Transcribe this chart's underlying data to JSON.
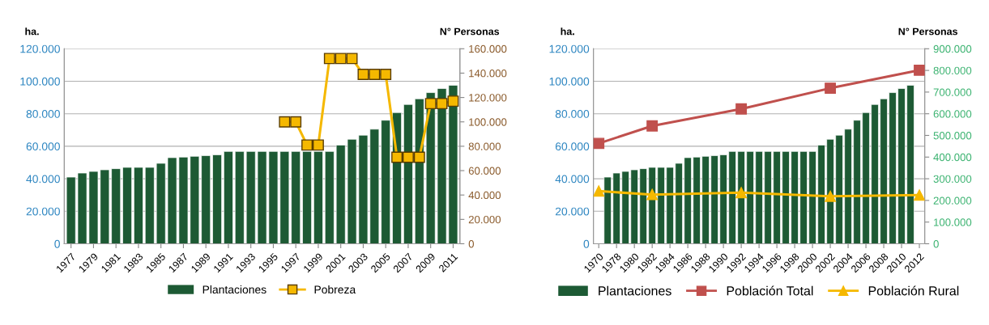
{
  "chart_data": [
    {
      "type": "bar",
      "ylabel": "ha.",
      "y2label": "N° Personas",
      "grid": "y",
      "legend": "bottom",
      "categories": [
        "1977",
        null,
        "1979",
        null,
        "1981",
        null,
        "1983",
        null,
        "1985",
        null,
        "1987",
        null,
        "1989",
        null,
        "1991",
        null,
        "1993",
        null,
        "1995",
        null,
        "1997",
        null,
        "1999",
        null,
        "2001",
        null,
        "2003",
        null,
        "2005",
        null,
        "2007",
        null,
        "2009",
        null,
        "2011"
      ],
      "ylim": [
        0,
        120000
      ],
      "yticks": [
        {
          "value": 0,
          "label": "0"
        },
        {
          "value": 20000,
          "label": "20.000"
        },
        {
          "value": 40000,
          "label": "40.000"
        },
        {
          "value": 60000,
          "label": "60.000"
        },
        {
          "value": 80000,
          "label": "80.000"
        },
        {
          "value": 100000,
          "label": "100.000"
        },
        {
          "value": 120000,
          "label": "120.000"
        }
      ],
      "y2lim": [
        0,
        160000
      ],
      "y2ticks": [
        {
          "value": 0,
          "label": "0"
        },
        {
          "value": 20000,
          "label": "20.000"
        },
        {
          "value": 40000,
          "label": "40.000"
        },
        {
          "value": 60000,
          "label": "60.000"
        },
        {
          "value": 80000,
          "label": "80.000"
        },
        {
          "value": 100000,
          "label": "100.000"
        },
        {
          "value": 120000,
          "label": "120.000"
        },
        {
          "value": 140000,
          "label": "140.000"
        },
        {
          "value": 160000,
          "label": "160.000"
        }
      ],
      "series": [
        {
          "name": "Plantaciones",
          "color": "#1d5a34",
          "values": [
            41000,
            43500,
            44500,
            45500,
            46200,
            47000,
            47000,
            47000,
            49500,
            53000,
            53300,
            53800,
            54200,
            54700,
            56800,
            56800,
            56800,
            56800,
            56800,
            56800,
            56800,
            56800,
            56800,
            56800,
            60700,
            64300,
            66800,
            70500,
            76000,
            80700,
            85700,
            89200,
            93000,
            95500,
            97500
          ]
        },
        {
          "name": "Pobreza",
          "type": "line",
          "axis": "y2",
          "marker": "square",
          "color": "#f5b800",
          "values": [
            null,
            null,
            null,
            null,
            null,
            null,
            null,
            null,
            null,
            null,
            null,
            null,
            null,
            null,
            null,
            null,
            null,
            null,
            null,
            100000,
            100000,
            81000,
            81000,
            152000,
            152000,
            152000,
            139000,
            139000,
            139000,
            71000,
            71000,
            71000,
            115000,
            115000,
            117000
          ]
        }
      ]
    },
    {
      "type": "bar",
      "ylabel": "ha.",
      "y2label": "N° Personas",
      "grid": "y",
      "legend": "bottom",
      "categories": [
        "1970",
        null,
        "1978",
        null,
        "1980",
        null,
        "1982",
        null,
        "1984",
        null,
        "1986",
        null,
        "1988",
        null,
        "1990",
        null,
        "1992",
        null,
        "1994",
        null,
        "1996",
        null,
        "1998",
        null,
        "2000",
        null,
        "2002",
        null,
        "2004",
        null,
        "2006",
        null,
        "2008",
        null,
        "2010",
        null,
        "2012"
      ],
      "ylim": [
        0,
        120000
      ],
      "yticks": [
        {
          "value": 0,
          "label": "0"
        },
        {
          "value": 20000,
          "label": "20.000"
        },
        {
          "value": 40000,
          "label": "40.000"
        },
        {
          "value": 60000,
          "label": "60.000"
        },
        {
          "value": 80000,
          "label": "80.000"
        },
        {
          "value": 100000,
          "label": "100.000"
        },
        {
          "value": 120000,
          "label": "120.000"
        }
      ],
      "y2lim": [
        0,
        900000
      ],
      "y2ticks": [
        {
          "value": 0,
          "label": "0"
        },
        {
          "value": 100000,
          "label": "100.000"
        },
        {
          "value": 200000,
          "label": "200.000"
        },
        {
          "value": 300000,
          "label": "300.000"
        },
        {
          "value": 400000,
          "label": "400.000"
        },
        {
          "value": 500000,
          "label": "500.000"
        },
        {
          "value": 600000,
          "label": "600.000"
        },
        {
          "value": 700000,
          "label": "700.000"
        },
        {
          "value": 800000,
          "label": "800.000"
        },
        {
          "value": 900000,
          "label": "900.000"
        }
      ],
      "series": [
        {
          "name": "Plantaciones",
          "color": "#1d5a34",
          "values": [
            null,
            41000,
            43500,
            44500,
            45500,
            46200,
            47000,
            47000,
            47000,
            49500,
            53000,
            53300,
            53800,
            54200,
            54700,
            56800,
            56800,
            56800,
            56800,
            56800,
            56800,
            56800,
            56800,
            56800,
            56800,
            60700,
            64300,
            66800,
            70500,
            76000,
            80700,
            85700,
            89200,
            93000,
            95500,
            97500,
            null
          ]
        },
        {
          "name": "Población Total",
          "type": "line",
          "axis": "y2",
          "marker": "square",
          "color": "#c0504d",
          "values": [
            463000,
            null,
            null,
            null,
            null,
            null,
            544000,
            null,
            null,
            null,
            null,
            null,
            null,
            null,
            null,
            null,
            622000,
            null,
            null,
            null,
            null,
            null,
            null,
            null,
            null,
            null,
            718000,
            null,
            null,
            null,
            null,
            null,
            null,
            null,
            null,
            null,
            801000
          ]
        },
        {
          "name": "Población Rural",
          "type": "line",
          "axis": "y2",
          "marker": "triangle",
          "color": "#f5b800",
          "values": [
            243000,
            null,
            null,
            null,
            null,
            null,
            227000,
            null,
            null,
            null,
            null,
            null,
            null,
            null,
            null,
            null,
            236000,
            null,
            null,
            null,
            null,
            null,
            null,
            null,
            null,
            null,
            219000,
            null,
            null,
            null,
            null,
            null,
            null,
            null,
            null,
            null,
            225000
          ]
        }
      ]
    }
  ]
}
